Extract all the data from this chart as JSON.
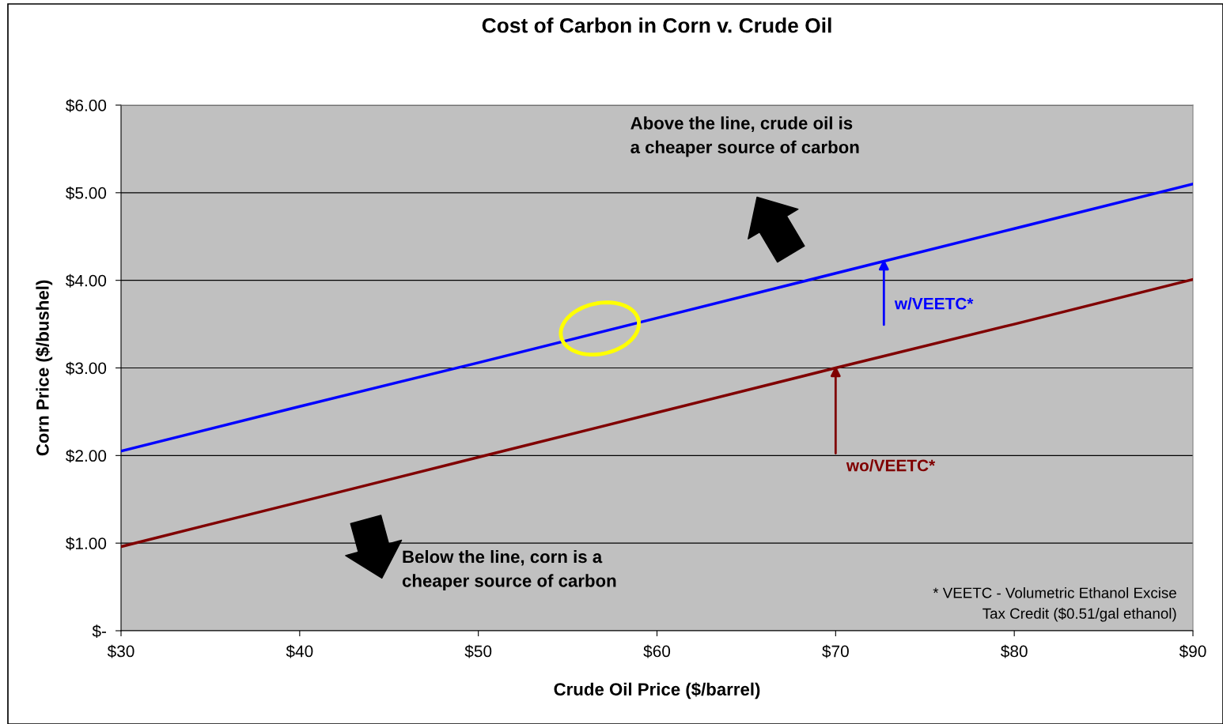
{
  "chart_data": {
    "type": "line",
    "title": "Cost of Carbon in Corn v. Crude Oil",
    "xlabel": "Crude Oil Price ($/barrel)",
    "ylabel": "Corn Price ($/bushel)",
    "x": [
      30,
      40,
      50,
      60,
      70,
      80,
      90
    ],
    "series": [
      {
        "name": "w/VEETC*",
        "color": "#0000ff",
        "values": [
          2.05,
          2.56,
          3.06,
          3.57,
          4.08,
          4.59,
          5.1
        ]
      },
      {
        "name": "wo/VEETC*",
        "color": "#800000",
        "values": [
          0.96,
          1.47,
          1.98,
          2.49,
          3.0,
          3.5,
          4.01
        ]
      }
    ],
    "xlim": [
      30,
      90
    ],
    "ylim": [
      0,
      6
    ],
    "xticks": [
      {
        "value": 30,
        "label": "$30"
      },
      {
        "value": 40,
        "label": "$40"
      },
      {
        "value": 50,
        "label": "$50"
      },
      {
        "value": 60,
        "label": "$60"
      },
      {
        "value": 70,
        "label": "$70"
      },
      {
        "value": 80,
        "label": "$80"
      },
      {
        "value": 90,
        "label": "$90"
      }
    ],
    "yticks": [
      {
        "value": 0,
        "label": "$-"
      },
      {
        "value": 1,
        "label": "$1.00"
      },
      {
        "value": 2,
        "label": "$2.00"
      },
      {
        "value": 3,
        "label": "$3.00"
      },
      {
        "value": 4,
        "label": "$4.00"
      },
      {
        "value": 5,
        "label": "$5.00"
      },
      {
        "value": 6,
        "label": "$6.00"
      }
    ],
    "annotations": [
      "Above the line, crude oil is\na cheaper source of carbon",
      "Below the line, corn is a\ncheaper source of carbon",
      "* VEETC - Volumetric Ethanol Excise\nTax Credit ($0.51/gal ethanol)"
    ],
    "grid": "y",
    "legend": false,
    "marker": "none",
    "line_style": "solid"
  }
}
